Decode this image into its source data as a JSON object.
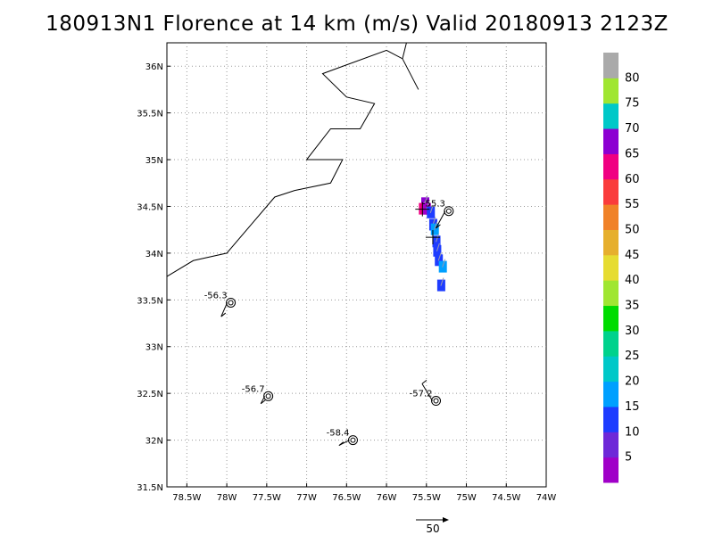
{
  "title": "180913N1 Florence at 14 km (m/s) Valid 20180913 2123Z",
  "axes": {
    "lon_ticks": [
      -78.5,
      -78,
      -77.5,
      -77,
      -76.5,
      -76,
      -75.5,
      -75,
      -74.5,
      -74
    ],
    "lon_labels": [
      "78.5W",
      "78W",
      "77.5W",
      "77W",
      "76.5W",
      "76W",
      "75.5W",
      "75W",
      "74.5W",
      "74W"
    ],
    "lat_ticks": [
      36,
      35.5,
      35,
      34.5,
      34,
      33.5,
      33,
      32.5,
      32,
      31.5
    ],
    "lat_labels": [
      "36N",
      "35.5N",
      "35N",
      "34.5N",
      "34N",
      "33.5N",
      "33N",
      "32.5N",
      "32N",
      "31.5N"
    ],
    "lon_range": [
      -78.75,
      -74
    ],
    "lat_range": [
      31.5,
      36.25
    ],
    "grid": true
  },
  "colorbar": {
    "labels": [
      "5",
      "10",
      "15",
      "20",
      "25",
      "30",
      "35",
      "40",
      "45",
      "50",
      "55",
      "60",
      "65",
      "70",
      "75",
      "80"
    ],
    "colors": [
      "#a000c8",
      "#6e28d8",
      "#1e3cff",
      "#00a0ff",
      "#00c8c8",
      "#00d28c",
      "#00dc00",
      "#a0e632",
      "#e6dc32",
      "#e6af2d",
      "#f08228",
      "#fa3c3c",
      "#f00082",
      "#8c00d2",
      "#00c8c8",
      "#a0e632",
      "#aaaaaa"
    ]
  },
  "coastline": [
    [
      -78.75,
      33.75
    ],
    [
      -78.42,
      33.92
    ],
    [
      -78.0,
      34.0
    ],
    [
      -77.7,
      34.3
    ],
    [
      -77.4,
      34.6
    ],
    [
      -77.15,
      34.67
    ],
    [
      -76.7,
      34.75
    ],
    [
      -76.55,
      35.0
    ],
    [
      -77.0,
      35.0
    ],
    [
      -76.7,
      35.33
    ],
    [
      -76.33,
      35.33
    ],
    [
      -76.15,
      35.6
    ],
    [
      -76.5,
      35.67
    ],
    [
      -76.8,
      35.92
    ],
    [
      -76.0,
      36.17
    ],
    [
      -75.8,
      36.08
    ],
    [
      -75.6,
      35.75
    ]
  ],
  "coastline_border": [
    [
      -75.8,
      36.08
    ],
    [
      -75.75,
      36.25
    ]
  ],
  "stations": [
    {
      "lat": 33.47,
      "lon": -77.95,
      "label": "-56.3",
      "barb_u": -0.9,
      "barb_v": -1.3
    },
    {
      "lat": 32.47,
      "lon": -77.48,
      "label": "-56.7",
      "barb_u": -0.7,
      "barb_v": -0.7
    },
    {
      "lat": 32.0,
      "lon": -76.42,
      "label": "-58.4",
      "barb_u": -1.3,
      "barb_v": -0.5
    },
    {
      "lat": 32.42,
      "lon": -75.38,
      "label": "-57.2",
      "barb_u": -1.3,
      "barb_v": 1.6
    },
    {
      "lat": 34.45,
      "lon": -75.22,
      "label": "-55.3",
      "barb_u": -1.2,
      "barb_v": -1.6
    }
  ],
  "wind_cells": [
    {
      "lat": 34.53,
      "lon": -75.52,
      "color": "#8c00d2"
    },
    {
      "lat": 34.47,
      "lon": -75.55,
      "color": "#f00082"
    },
    {
      "lat": 34.47,
      "lon": -75.5,
      "color": "#a000c8"
    },
    {
      "lat": 34.43,
      "lon": -75.45,
      "color": "#1e3cff"
    },
    {
      "lat": 34.3,
      "lon": -75.42,
      "color": "#1e3cff"
    },
    {
      "lat": 34.25,
      "lon": -75.4,
      "color": "#00a0ff"
    },
    {
      "lat": 34.12,
      "lon": -75.38,
      "color": "#1e3cff"
    },
    {
      "lat": 34.02,
      "lon": -75.37,
      "color": "#1e3cff"
    },
    {
      "lat": 33.92,
      "lon": -75.35,
      "color": "#1e3cff"
    },
    {
      "lat": 33.85,
      "lon": -75.3,
      "color": "#00a0ff"
    },
    {
      "lat": 33.65,
      "lon": -75.32,
      "color": "#1e3cff"
    }
  ],
  "reference_vector": {
    "label": "50"
  }
}
